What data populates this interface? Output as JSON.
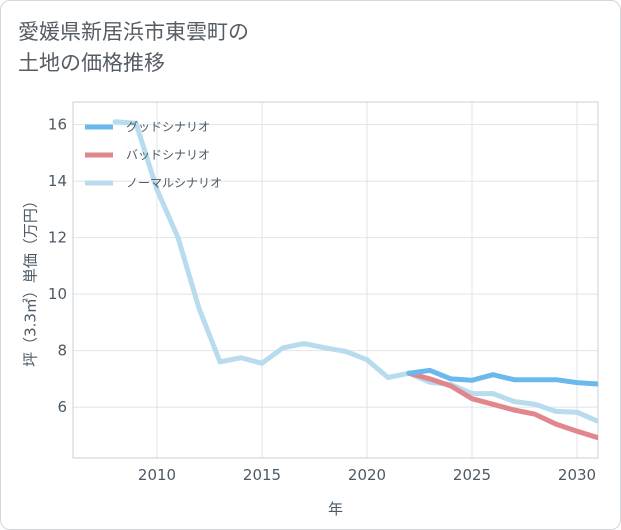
{
  "title": {
    "line1": "愛媛県新居浜市東雲町の",
    "line2": "土地の価格推移"
  },
  "chart_data": {
    "type": "line",
    "title": "愛媛県新居浜市東雲町の土地の価格推移",
    "xlabel": "年",
    "ylabel": "坪（3.3㎡）単価（万円）",
    "xlim": [
      2006,
      2031
    ],
    "ylim": [
      4.2,
      16.8
    ],
    "xticks": [
      2010,
      2015,
      2020,
      2025,
      2030
    ],
    "yticks": [
      6,
      8,
      10,
      12,
      14,
      16
    ],
    "grid": true,
    "legend_position": "top-left",
    "series": [
      {
        "name": "グッドシナリオ",
        "color": "#6bb8ee",
        "x": [
          2022,
          2023,
          2024,
          2025,
          2026,
          2027,
          2028,
          2029,
          2030,
          2031
        ],
        "values": [
          7.2,
          7.3,
          7.0,
          6.95,
          7.15,
          6.97,
          6.97,
          6.97,
          6.87,
          6.82
        ]
      },
      {
        "name": "バッドシナリオ",
        "color": "#e0868c",
        "x": [
          2022,
          2023,
          2024,
          2025,
          2026,
          2027,
          2028,
          2029,
          2030,
          2031
        ],
        "values": [
          7.2,
          7.0,
          6.75,
          6.3,
          6.1,
          5.9,
          5.75,
          5.4,
          5.15,
          4.92
        ]
      },
      {
        "name": "ノーマルシナリオ",
        "color": "#b8dcee",
        "x": [
          2008,
          2009,
          2010,
          2011,
          2012,
          2013,
          2014,
          2015,
          2016,
          2017,
          2018,
          2019,
          2020,
          2021,
          2022,
          2023,
          2024,
          2025,
          2026,
          2027,
          2028,
          2029,
          2030,
          2031
        ],
        "values": [
          16.1,
          16.05,
          13.7,
          12.0,
          9.5,
          7.6,
          7.75,
          7.55,
          8.1,
          8.25,
          8.1,
          7.97,
          7.68,
          7.05,
          7.2,
          6.88,
          6.8,
          6.48,
          6.48,
          6.2,
          6.1,
          5.85,
          5.82,
          5.5
        ]
      }
    ]
  }
}
